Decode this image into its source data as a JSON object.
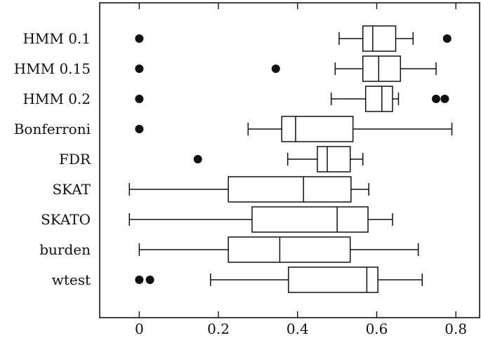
{
  "chart_data": {
    "type": "boxplot",
    "orientation": "horizontal",
    "title": "",
    "xlabel": "",
    "ylabel": "",
    "xlim": [
      -0.1,
      0.86
    ],
    "xticks": [
      0,
      0.2,
      0.4,
      0.6,
      0.8
    ],
    "xtick_labels": [
      "0",
      "0.2",
      "0.4",
      "0.6",
      "0.8"
    ],
    "grid": false,
    "categories": [
      {
        "label": "HMM 0.1",
        "whisker_low": 0.505,
        "q1": 0.565,
        "median": 0.59,
        "q3": 0.648,
        "whisker_high": 0.692,
        "outliers": [
          0,
          0.778
        ]
      },
      {
        "label": "HMM 0.15",
        "whisker_low": 0.495,
        "q1": 0.565,
        "median": 0.605,
        "q3": 0.66,
        "whisker_high": 0.75,
        "outliers": [
          0,
          0.345
        ]
      },
      {
        "label": "HMM 0.2",
        "whisker_low": 0.485,
        "q1": 0.572,
        "median": 0.613,
        "q3": 0.64,
        "whisker_high": 0.655,
        "outliers": [
          0,
          0.75,
          0.772
        ]
      },
      {
        "label": "Bonferroni",
        "whisker_low": 0.275,
        "q1": 0.36,
        "median": 0.395,
        "q3": 0.54,
        "whisker_high": 0.79,
        "outliers": [
          0
        ]
      },
      {
        "label": "FDR",
        "whisker_low": 0.375,
        "q1": 0.45,
        "median": 0.475,
        "q3": 0.533,
        "whisker_high": 0.565,
        "outliers": [
          0.148
        ]
      },
      {
        "label": "SKAT",
        "whisker_low": -0.025,
        "q1": 0.225,
        "median": 0.415,
        "q3": 0.535,
        "whisker_high": 0.58,
        "outliers": []
      },
      {
        "label": "SKATO",
        "whisker_low": -0.025,
        "q1": 0.285,
        "median": 0.5,
        "q3": 0.578,
        "whisker_high": 0.64,
        "outliers": []
      },
      {
        "label": "burden",
        "whisker_low": 0,
        "q1": 0.225,
        "median": 0.355,
        "q3": 0.533,
        "whisker_high": 0.705,
        "outliers": []
      },
      {
        "label": "wtest",
        "whisker_low": 0.18,
        "q1": 0.377,
        "median": 0.575,
        "q3": 0.603,
        "whisker_high": 0.715,
        "outliers": [
          0,
          0.027
        ]
      }
    ],
    "colors": {
      "line": "#111111",
      "box_fill": "#ffffff",
      "outlier": "#111111"
    }
  }
}
